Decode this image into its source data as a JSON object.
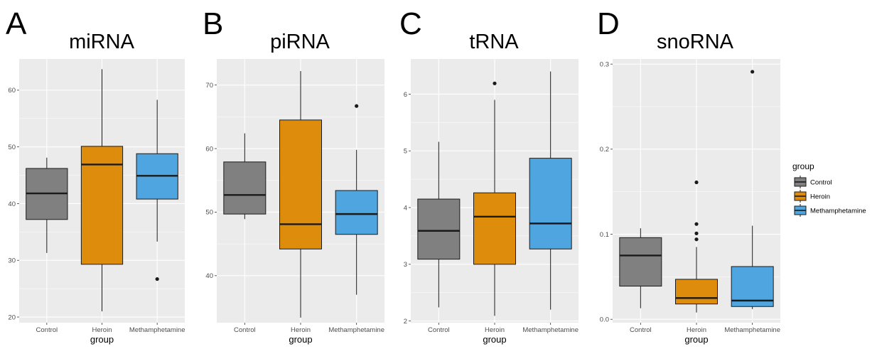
{
  "chart_data": [
    {
      "type": "box",
      "panel_label": "A",
      "title": "miRNA",
      "xlabel": "group",
      "ylabel": "",
      "ylim": [
        19,
        65.5
      ],
      "yticks": [
        20,
        30,
        40,
        50,
        60
      ],
      "ytick_labels": [
        "20",
        "30",
        "40",
        "50",
        "60"
      ],
      "grid": true,
      "categories": [
        "Control",
        "Heroin",
        "Methamphetamine"
      ],
      "boxes": [
        {
          "group": "Control",
          "whisker_low": 31.3,
          "q1": 37.2,
          "median": 41.8,
          "q3": 46.2,
          "whisker_high": 48.1,
          "outliers": []
        },
        {
          "group": "Heroin",
          "whisker_low": 21.0,
          "q1": 29.3,
          "median": 46.9,
          "q3": 50.1,
          "whisker_high": 63.7,
          "outliers": []
        },
        {
          "group": "Methamphetamine",
          "whisker_low": 33.3,
          "q1": 40.8,
          "median": 44.9,
          "q3": 48.8,
          "whisker_high": 58.3,
          "outliers": [
            26.7
          ]
        }
      ]
    },
    {
      "type": "box",
      "panel_label": "B",
      "title": "piRNA",
      "xlabel": "group",
      "ylabel": "",
      "ylim": [
        32.6,
        74.1
      ],
      "yticks": [
        40,
        50,
        60,
        70
      ],
      "ytick_labels": [
        "40",
        "50",
        "60",
        "70"
      ],
      "grid": true,
      "categories": [
        "Control",
        "Heroin",
        "Methamphetamine"
      ],
      "boxes": [
        {
          "group": "Control",
          "whisker_low": 48.9,
          "q1": 49.7,
          "median": 52.7,
          "q3": 57.9,
          "whisker_high": 62.4,
          "outliers": []
        },
        {
          "group": "Heroin",
          "whisker_low": 33.4,
          "q1": 44.2,
          "median": 48.1,
          "q3": 64.5,
          "whisker_high": 72.2,
          "outliers": []
        },
        {
          "group": "Methamphetamine",
          "whisker_low": 37.0,
          "q1": 46.5,
          "median": 49.7,
          "q3": 53.4,
          "whisker_high": 59.8,
          "outliers": [
            66.7
          ]
        }
      ]
    },
    {
      "type": "box",
      "panel_label": "C",
      "title": "tRNA",
      "xlabel": "group",
      "ylabel": "",
      "ylim": [
        1.97,
        6.62
      ],
      "yticks": [
        2,
        3,
        4,
        5,
        6
      ],
      "ytick_labels": [
        "2",
        "3",
        "4",
        "5",
        "6"
      ],
      "grid": true,
      "categories": [
        "Control",
        "Heroin",
        "Methamphetamine"
      ],
      "boxes": [
        {
          "group": "Control",
          "whisker_low": 2.24,
          "q1": 3.09,
          "median": 3.59,
          "q3": 4.15,
          "whisker_high": 5.16,
          "outliers": []
        },
        {
          "group": "Heroin",
          "whisker_low": 2.09,
          "q1": 3.0,
          "median": 3.84,
          "q3": 4.26,
          "whisker_high": 5.9,
          "outliers": [
            6.19
          ]
        },
        {
          "group": "Methamphetamine",
          "whisker_low": 2.2,
          "q1": 3.27,
          "median": 3.72,
          "q3": 4.87,
          "whisker_high": 6.4,
          "outliers": []
        }
      ]
    },
    {
      "type": "box",
      "panel_label": "D",
      "title": "snoRNA",
      "xlabel": "group",
      "ylabel": "",
      "ylim": [
        -0.004,
        0.306
      ],
      "yticks": [
        0.0,
        0.1,
        0.2,
        0.3
      ],
      "ytick_labels": [
        "0.0",
        "0.1",
        "0.2",
        "0.3"
      ],
      "grid": true,
      "categories": [
        "Control",
        "Heroin",
        "Methamphetamine"
      ],
      "boxes": [
        {
          "group": "Control",
          "whisker_low": 0.013,
          "q1": 0.039,
          "median": 0.075,
          "q3": 0.096,
          "whisker_high": 0.107,
          "outliers": []
        },
        {
          "group": "Heroin",
          "whisker_low": 0.008,
          "q1": 0.018,
          "median": 0.025,
          "q3": 0.047,
          "whisker_high": 0.085,
          "outliers": [
            0.094,
            0.101,
            0.112,
            0.161
          ]
        },
        {
          "group": "Methamphetamine",
          "whisker_low": 0.012,
          "q1": 0.015,
          "median": 0.022,
          "q3": 0.062,
          "whisker_high": 0.11,
          "outliers": [
            0.291
          ]
        }
      ]
    }
  ],
  "legend": {
    "title": "group",
    "placement": "right",
    "items": [
      {
        "label": "Control",
        "color": "#808080"
      },
      {
        "label": "Heroin",
        "color": "#DE8C0C"
      },
      {
        "label": "Methamphetamine",
        "color": "#4EA5E0"
      }
    ]
  },
  "colors": {
    "panel_background": "#EBEBEB",
    "grid": "#FFFFFF",
    "box_stroke": "#1a1a1a",
    "tick_text": "#4d4d4d"
  }
}
